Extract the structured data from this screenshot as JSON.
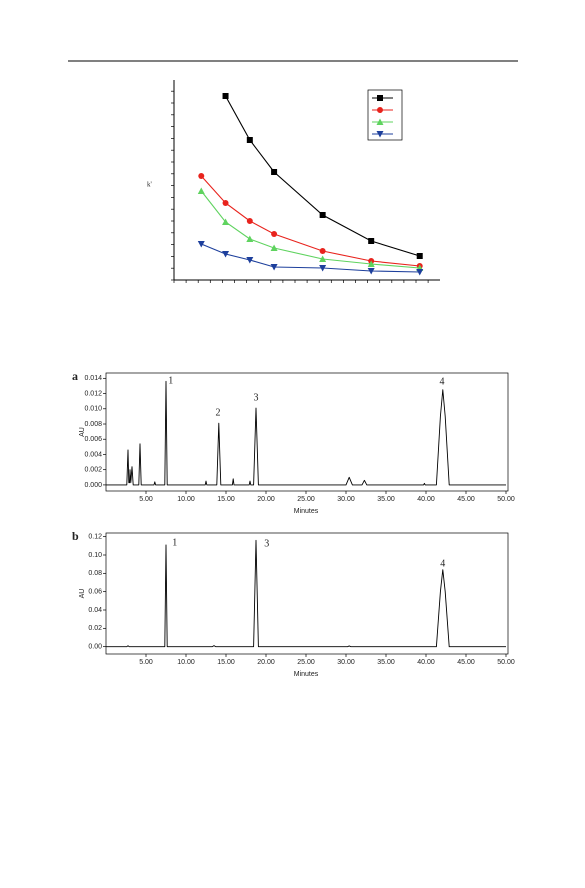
{
  "chart_data": [
    {
      "type": "line",
      "y_label": "k'",
      "marker_lines": true,
      "x": [
        1,
        2,
        3,
        4,
        6,
        8,
        10
      ],
      "xlim": [
        0,
        11
      ],
      "ylim": [
        0,
        10
      ],
      "series": [
        {
          "color": "#000000",
          "marker": "square",
          "values": [
            null,
            9.2,
            7.0,
            5.4,
            3.25,
            1.95,
            1.2
          ]
        },
        {
          "color": "#e8231d",
          "marker": "circle",
          "values": [
            5.2,
            3.85,
            2.95,
            2.3,
            1.45,
            0.95,
            0.7
          ]
        },
        {
          "color": "#5fd35f",
          "marker": "triangle-up",
          "values": [
            4.45,
            2.9,
            2.05,
            1.6,
            1.05,
            0.8,
            0.6
          ]
        },
        {
          "color": "#1d3f9c",
          "marker": "triangle-down",
          "values": [
            1.8,
            1.3,
            1.0,
            0.65,
            0.6,
            0.45,
            0.4
          ]
        }
      ]
    },
    {
      "type": "chromatogram",
      "panel": "a",
      "x_label": "Minutes",
      "y_label": "AU",
      "color": "#000000",
      "xlim": [
        0,
        50
      ],
      "ylim": [
        -0.0008,
        0.0147
      ],
      "xticks": [
        {
          "value": 5,
          "label": "5.00"
        },
        {
          "value": 10,
          "label": "10.00"
        },
        {
          "value": 15,
          "label": "15.00"
        },
        {
          "value": 20,
          "label": "20.00"
        },
        {
          "value": 25,
          "label": "25.00"
        },
        {
          "value": 30,
          "label": "30.00"
        },
        {
          "value": 35,
          "label": "35.00"
        },
        {
          "value": 40,
          "label": "40.00"
        },
        {
          "value": 45,
          "label": "45.00"
        },
        {
          "value": 50,
          "label": "50.00"
        }
      ],
      "yticks": [
        {
          "value": 0,
          "label": "0.000"
        },
        {
          "value": 0.002,
          "label": "0.002"
        },
        {
          "value": 0.004,
          "label": "0.004"
        },
        {
          "value": 0.006,
          "label": "0.006"
        },
        {
          "value": 0.008,
          "label": "0.008"
        },
        {
          "value": 0.01,
          "label": "0.010"
        },
        {
          "value": 0.012,
          "label": "0.012"
        },
        {
          "value": 0.014,
          "label": "0.014"
        }
      ],
      "x": [
        0,
        2.6,
        2.75,
        2.85,
        2.95,
        3.0,
        3.1,
        3.25,
        3.4,
        4.1,
        4.25,
        4.4,
        6.0,
        6.1,
        6.2,
        7.35,
        7.5,
        7.65,
        12.4,
        12.5,
        12.6,
        13.85,
        14.1,
        14.35,
        15.8,
        15.9,
        16.0,
        17.9,
        18.0,
        18.1,
        18.45,
        18.75,
        19.05,
        30.0,
        30.4,
        30.8,
        32.0,
        32.3,
        32.6,
        39.7,
        39.8,
        39.9,
        41.3,
        41.8,
        42.1,
        42.4,
        42.9,
        50
      ],
      "values": [
        0,
        0,
        0.0046,
        0.0003,
        0.0003,
        0.002,
        0.0003,
        0.0024,
        0,
        0,
        0.0054,
        0,
        0,
        0.0004,
        0,
        0,
        0.0136,
        0,
        0,
        0.0005,
        0,
        0,
        0.0081,
        0,
        0,
        0.0008,
        0,
        0,
        0.0005,
        0,
        0,
        0.0101,
        0,
        0,
        0.001,
        0,
        0,
        0.0006,
        0,
        0,
        0.0002,
        0,
        0,
        0.009,
        0.0125,
        0.009,
        0,
        0
      ],
      "annotations": [
        {
          "text": "1",
          "x": 8.1,
          "y": 0.0136
        },
        {
          "text": "2",
          "x": 14.0,
          "y": 0.0094
        },
        {
          "text": "3",
          "x": 18.75,
          "y": 0.0114
        },
        {
          "text": "4",
          "x": 42.0,
          "y": 0.0135
        }
      ]
    },
    {
      "type": "chromatogram",
      "panel": "b",
      "x_label": "Minutes",
      "y_label": "AU",
      "color": "#000000",
      "xlim": [
        0,
        50
      ],
      "ylim": [
        -0.008,
        0.124
      ],
      "xticks": [
        {
          "value": 5,
          "label": "5.00"
        },
        {
          "value": 10,
          "label": "10.00"
        },
        {
          "value": 15,
          "label": "15.00"
        },
        {
          "value": 20,
          "label": "20.00"
        },
        {
          "value": 25,
          "label": "25.00"
        },
        {
          "value": 30,
          "label": "30.00"
        },
        {
          "value": 35,
          "label": "35.00"
        },
        {
          "value": 40,
          "label": "40.00"
        },
        {
          "value": 45,
          "label": "45.00"
        },
        {
          "value": 50,
          "label": "50.00"
        }
      ],
      "yticks": [
        {
          "value": 0,
          "label": "0.00"
        },
        {
          "value": 0.02,
          "label": "0.02"
        },
        {
          "value": 0.04,
          "label": "0.04"
        },
        {
          "value": 0.06,
          "label": "0.06"
        },
        {
          "value": 0.08,
          "label": "0.08"
        },
        {
          "value": 0.1,
          "label": "0.10"
        },
        {
          "value": 0.12,
          "label": "0.12"
        }
      ],
      "x": [
        0,
        2.6,
        2.75,
        2.9,
        7.35,
        7.5,
        7.65,
        13.3,
        13.5,
        13.7,
        18.45,
        18.75,
        19.05,
        30.2,
        30.4,
        30.6,
        41.3,
        41.8,
        42.1,
        42.4,
        42.9,
        50
      ],
      "values": [
        0,
        0,
        0.001,
        0,
        0,
        0.111,
        0,
        0,
        0.0012,
        0,
        0,
        0.116,
        0,
        0,
        0.0008,
        0,
        0,
        0.06,
        0.084,
        0.06,
        0,
        0
      ],
      "annotations": [
        {
          "text": "1",
          "x": 8.6,
          "y": 0.113
        },
        {
          "text": "3",
          "x": 20.1,
          "y": 0.112
        },
        {
          "text": "4",
          "x": 42.1,
          "y": 0.09
        }
      ]
    }
  ]
}
